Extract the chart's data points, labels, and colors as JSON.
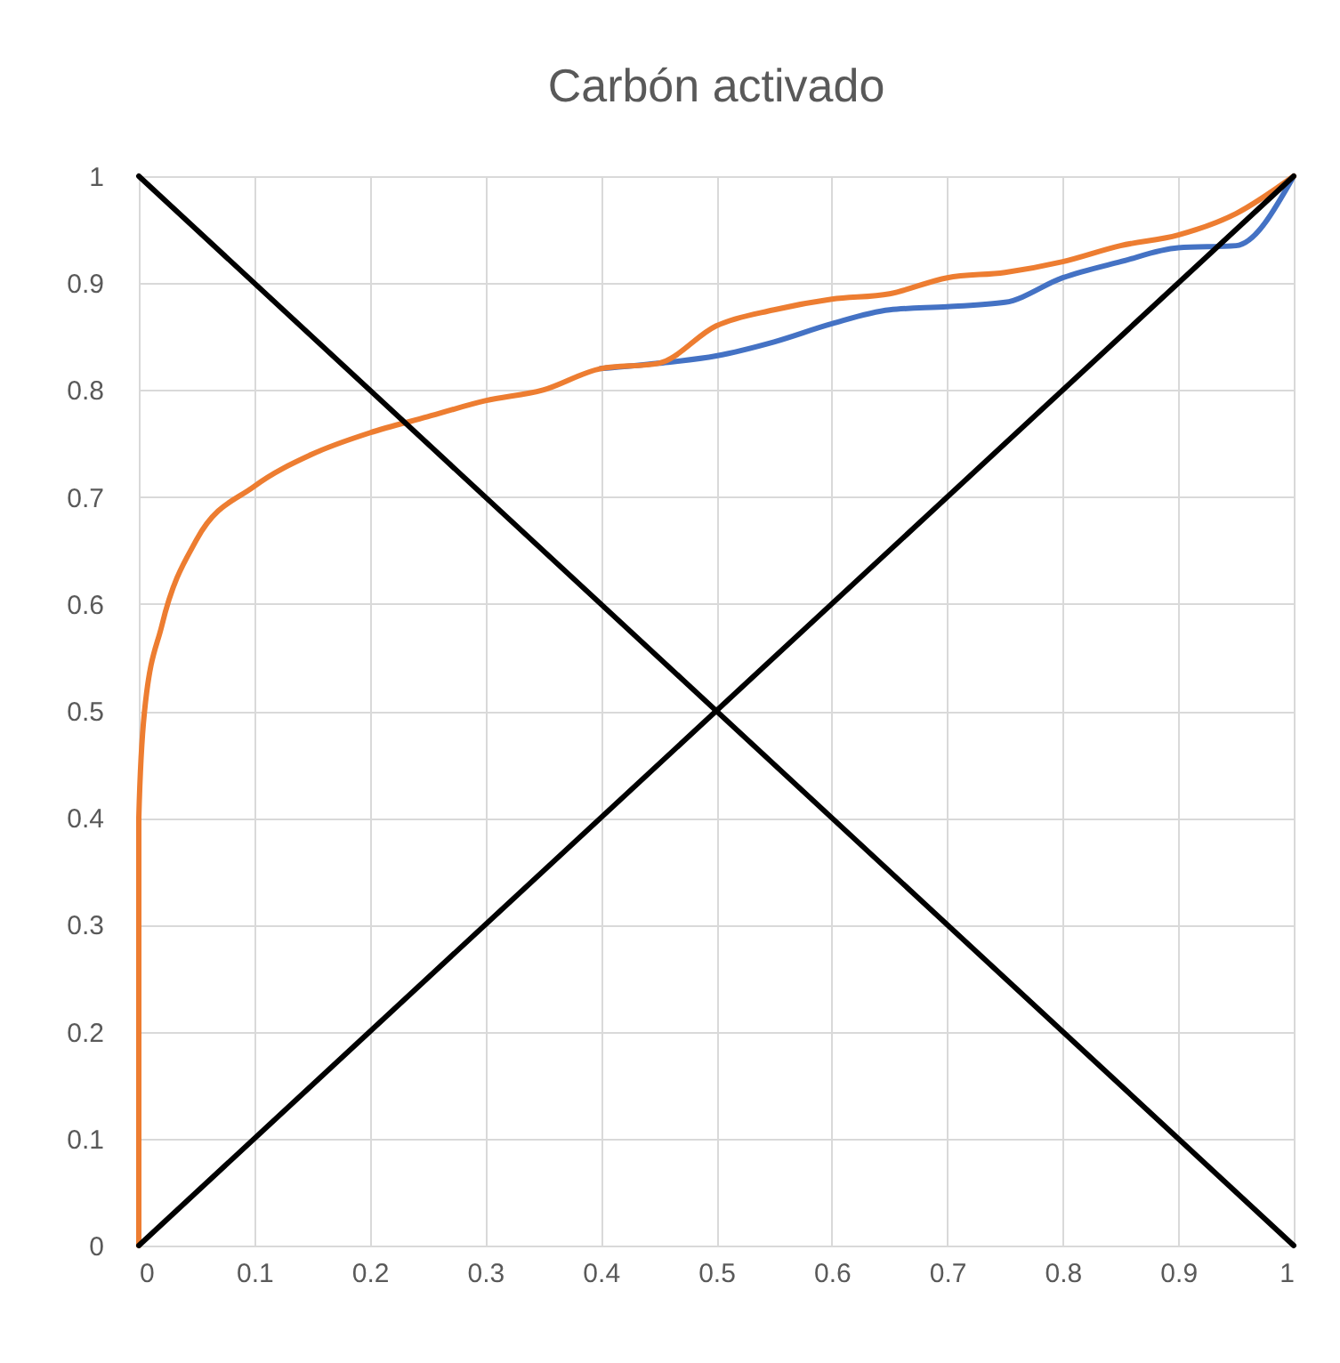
{
  "chart_data": {
    "type": "line",
    "title": "Carbón activado",
    "xlim": [
      0,
      1
    ],
    "ylim": [
      0,
      1
    ],
    "xticks": [
      0,
      0.1,
      0.2,
      0.3,
      0.4,
      0.5,
      0.6,
      0.7,
      0.8,
      0.9,
      1
    ],
    "yticks": [
      0,
      0.1,
      0.2,
      0.3,
      0.4,
      0.5,
      0.6,
      0.7,
      0.8,
      0.9,
      1
    ],
    "grid": true,
    "line_style": "solid",
    "marker": "none",
    "series": [
      {
        "color": "#4472c4",
        "x": [
          0.4,
          0.45,
          0.5,
          0.55,
          0.6,
          0.65,
          0.7,
          0.75,
          0.8,
          0.85,
          0.9,
          0.95,
          1
        ],
        "values": [
          0.82,
          0.825,
          0.832,
          0.845,
          0.862,
          0.875,
          0.878,
          0.882,
          0.905,
          0.92,
          0.933,
          0.935,
          1
        ]
      },
      {
        "color": "#ed7d31",
        "x": [
          0,
          0,
          0.005,
          0.02,
          0.05,
          0.1,
          0.15,
          0.2,
          0.25,
          0.3,
          0.35,
          0.4,
          0.45,
          0.5,
          0.55,
          0.6,
          0.65,
          0.7,
          0.75,
          0.8,
          0.85,
          0.9,
          0.95,
          1
        ],
        "values": [
          0,
          0.4,
          0.5,
          0.58,
          0.66,
          0.71,
          0.74,
          0.76,
          0.775,
          0.79,
          0.8,
          0.82,
          0.825,
          0.86,
          0.875,
          0.885,
          0.89,
          0.905,
          0.91,
          0.92,
          0.935,
          0.945,
          0.965,
          1
        ]
      },
      {
        "color": "#000000",
        "x": [
          0,
          1
        ],
        "values": [
          0,
          1
        ]
      },
      {
        "color": "#000000",
        "x": [
          0,
          1
        ],
        "values": [
          1,
          0
        ]
      }
    ]
  }
}
